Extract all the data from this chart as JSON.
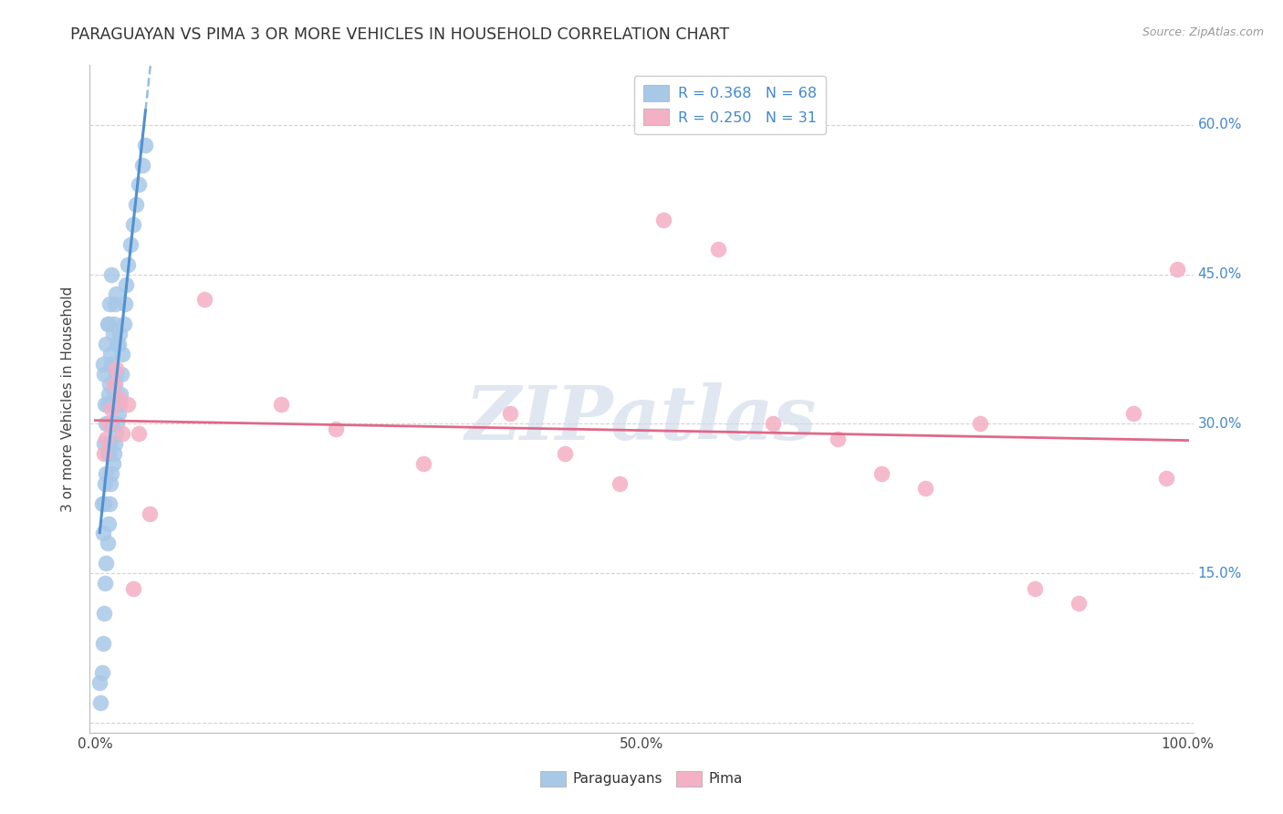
{
  "title": "PARAGUAYAN VS PIMA 3 OR MORE VEHICLES IN HOUSEHOLD CORRELATION CHART",
  "source": "Source: ZipAtlas.com",
  "ylabel": "3 or more Vehicles in Household",
  "xlim": [
    -0.005,
    1.005
  ],
  "ylim": [
    -0.01,
    0.66
  ],
  "xticks": [
    0.0,
    0.1,
    0.2,
    0.3,
    0.4,
    0.5,
    0.6,
    0.7,
    0.8,
    0.9,
    1.0
  ],
  "xticklabels": [
    "0.0%",
    "",
    "",
    "",
    "",
    "50.0%",
    "",
    "",
    "",
    "",
    "100.0%"
  ],
  "ytick_vals": [
    0.0,
    0.15,
    0.3,
    0.45,
    0.6
  ],
  "yticklabels": [
    "",
    "15.0%",
    "30.0%",
    "45.0%",
    "60.0%"
  ],
  "legend1_label": "R = 0.368   N = 68",
  "legend2_label": "R = 0.250   N = 31",
  "legend_bottom1": "Paraguayans",
  "legend_bottom2": "Pima",
  "par_color": "#a8c8e8",
  "pima_color": "#f4b0c4",
  "reg_blue": "#5090d0",
  "reg_pink": "#e06888",
  "watermark_color": "#ccd8e8",
  "par_x": [
    0.004,
    0.005,
    0.006,
    0.006,
    0.007,
    0.007,
    0.007,
    0.008,
    0.008,
    0.008,
    0.008,
    0.009,
    0.009,
    0.009,
    0.01,
    0.01,
    0.01,
    0.01,
    0.011,
    0.011,
    0.011,
    0.011,
    0.012,
    0.012,
    0.012,
    0.012,
    0.013,
    0.013,
    0.013,
    0.013,
    0.014,
    0.014,
    0.014,
    0.015,
    0.015,
    0.015,
    0.015,
    0.016,
    0.016,
    0.016,
    0.017,
    0.017,
    0.017,
    0.018,
    0.018,
    0.018,
    0.019,
    0.019,
    0.019,
    0.02,
    0.02,
    0.021,
    0.021,
    0.022,
    0.022,
    0.023,
    0.024,
    0.025,
    0.026,
    0.027,
    0.028,
    0.03,
    0.032,
    0.035,
    0.037,
    0.04,
    0.043,
    0.046
  ],
  "par_y": [
    0.04,
    0.02,
    0.05,
    0.22,
    0.08,
    0.19,
    0.36,
    0.11,
    0.22,
    0.28,
    0.35,
    0.14,
    0.24,
    0.32,
    0.16,
    0.25,
    0.3,
    0.38,
    0.18,
    0.27,
    0.32,
    0.4,
    0.2,
    0.27,
    0.33,
    0.4,
    0.22,
    0.28,
    0.34,
    0.42,
    0.24,
    0.3,
    0.37,
    0.25,
    0.3,
    0.36,
    0.45,
    0.26,
    0.32,
    0.39,
    0.27,
    0.33,
    0.4,
    0.28,
    0.34,
    0.42,
    0.29,
    0.35,
    0.43,
    0.3,
    0.38,
    0.31,
    0.38,
    0.32,
    0.39,
    0.33,
    0.35,
    0.37,
    0.4,
    0.42,
    0.44,
    0.46,
    0.48,
    0.5,
    0.52,
    0.54,
    0.56,
    0.58
  ],
  "pima_x": [
    0.008,
    0.01,
    0.012,
    0.015,
    0.017,
    0.019,
    0.022,
    0.025,
    0.03,
    0.035,
    0.04,
    0.05,
    0.1,
    0.17,
    0.22,
    0.3,
    0.38,
    0.43,
    0.48,
    0.52,
    0.57,
    0.62,
    0.68,
    0.72,
    0.76,
    0.81,
    0.86,
    0.9,
    0.95,
    0.98,
    0.99
  ],
  "pima_y": [
    0.27,
    0.285,
    0.3,
    0.315,
    0.34,
    0.355,
    0.325,
    0.29,
    0.32,
    0.135,
    0.29,
    0.21,
    0.425,
    0.32,
    0.295,
    0.26,
    0.31,
    0.27,
    0.24,
    0.505,
    0.475,
    0.3,
    0.285,
    0.25,
    0.235,
    0.3,
    0.135,
    0.12,
    0.31,
    0.245,
    0.455
  ]
}
